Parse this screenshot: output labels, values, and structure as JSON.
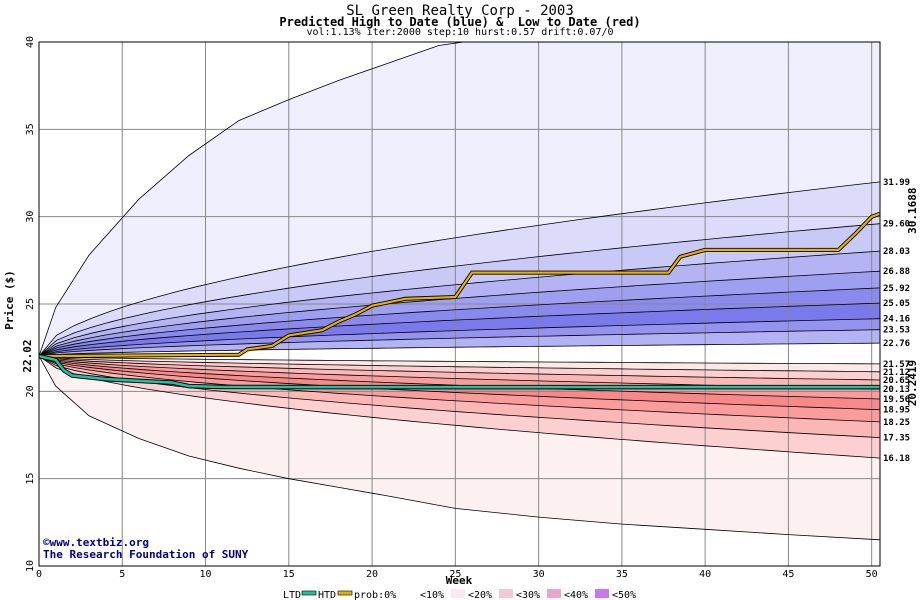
{
  "chart_data": {
    "type": "area",
    "title": "SL Green Realty Corp - 2003",
    "subtitle": "Predicted High to Date (blue) &  Low to Date (red)",
    "params": "vol:1.13% iter:2000 step:10 hurst:0.57 drift:0.07/0",
    "xlabel": "Week",
    "ylabel": "Price ($)",
    "xlim": [
      0,
      50.5
    ],
    "ylim": [
      10,
      40
    ],
    "xticks": [
      "0",
      "5",
      "10",
      "15",
      "20",
      "25",
      "30",
      "35",
      "40",
      "45",
      "50"
    ],
    "yticks": [
      "10",
      "15",
      "20",
      "25",
      "30",
      "35",
      "40"
    ],
    "start_price": "22.02",
    "start_value": 22.02,
    "htd_final_label": "30.1688",
    "htd_final_value": 30.1688,
    "ltd_final_label": "20.2419",
    "ltd_final_value": 20.2419,
    "high_levels": [
      {
        "label": "31.99",
        "value": 31.99
      },
      {
        "label": "29.60",
        "value": 29.6
      },
      {
        "label": "28.03",
        "value": 28.03
      },
      {
        "label": "26.88",
        "value": 26.88
      },
      {
        "label": "25.92",
        "value": 25.92
      },
      {
        "label": "25.05",
        "value": 25.05
      },
      {
        "label": "24.16",
        "value": 24.16
      },
      {
        "label": "23.53",
        "value": 23.53
      },
      {
        "label": "22.76",
        "value": 22.76
      }
    ],
    "low_levels": [
      {
        "label": "21.57",
        "value": 21.57
      },
      {
        "label": "21.12",
        "value": 21.12
      },
      {
        "label": "20.65",
        "value": 20.65
      },
      {
        "label": "20.13",
        "value": 20.13
      },
      {
        "label": "19.56",
        "value": 19.56
      },
      {
        "label": "18.95",
        "value": 18.95
      },
      {
        "label": "18.25",
        "value": 18.25
      },
      {
        "label": "17.35",
        "value": 17.35
      },
      {
        "label": "16.18",
        "value": 16.18
      }
    ],
    "outer_high_envelope": [
      [
        0,
        22.02
      ],
      [
        1,
        24.8
      ],
      [
        3,
        27.8
      ],
      [
        6,
        31.0
      ],
      [
        9,
        33.5
      ],
      [
        12,
        35.5
      ],
      [
        15,
        36.7
      ],
      [
        18,
        37.8
      ],
      [
        21,
        38.8
      ],
      [
        24,
        39.8
      ],
      [
        25.5,
        40
      ]
    ],
    "outer_low_envelope": [
      [
        0,
        22.02
      ],
      [
        1,
        20.3
      ],
      [
        3,
        18.6
      ],
      [
        6,
        17.3
      ],
      [
        9,
        16.3
      ],
      [
        12,
        15.6
      ],
      [
        15,
        15.0
      ],
      [
        18,
        14.5
      ],
      [
        21,
        14.0
      ],
      [
        25,
        13.3
      ],
      [
        30,
        12.8
      ],
      [
        35,
        12.4
      ],
      [
        40,
        12.1
      ],
      [
        45,
        11.8
      ],
      [
        50.5,
        11.5
      ]
    ],
    "htd_series": [
      [
        0,
        22.02
      ],
      [
        12,
        22.1
      ],
      [
        12.5,
        22.4
      ],
      [
        14,
        22.6
      ],
      [
        15,
        23.2
      ],
      [
        17,
        23.5
      ],
      [
        18,
        24.0
      ],
      [
        19,
        24.4
      ],
      [
        20,
        24.9
      ],
      [
        22,
        25.3
      ],
      [
        25,
        25.4
      ],
      [
        26,
        26.8
      ],
      [
        37.8,
        26.8
      ],
      [
        38.5,
        27.7
      ],
      [
        40,
        28.1
      ],
      [
        48,
        28.1
      ],
      [
        49,
        29.0
      ],
      [
        50,
        30.0
      ],
      [
        50.5,
        30.17
      ]
    ],
    "ltd_series": [
      [
        0,
        22.02
      ],
      [
        1,
        21.8
      ],
      [
        1.5,
        21.2
      ],
      [
        2,
        20.9
      ],
      [
        4,
        20.7
      ],
      [
        6,
        20.6
      ],
      [
        8,
        20.5
      ],
      [
        9,
        20.3
      ],
      [
        11,
        20.25
      ],
      [
        20,
        20.24
      ],
      [
        30,
        20.24
      ],
      [
        40,
        20.24
      ],
      [
        50.5,
        20.24
      ]
    ],
    "colors": {
      "htd_line": "#e8b000",
      "ltd_line": "#20c0a0",
      "start_label": "#006000",
      "htd_label": "#b07800",
      "ltd_label": "#008060"
    },
    "grid": true
  },
  "watermark": {
    "line1": "©www.textbiz.org",
    "line2": "The Research Foundation of SUNY"
  },
  "legend": {
    "ltd": "LTD",
    "htd": "HTD",
    "prob": "prob:0%",
    "p10": "<10%",
    "p20": "<20%",
    "p30": "<30%",
    "p40": "<40%",
    "p50": "<50%"
  }
}
